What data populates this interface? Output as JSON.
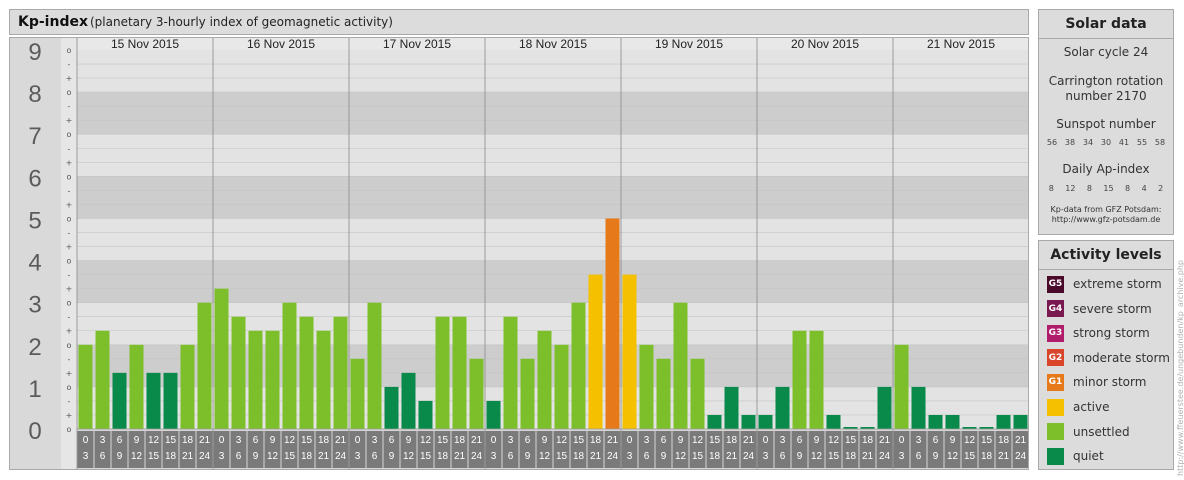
{
  "header": {
    "title": "Kp-index",
    "subtitle": "(planetary 3-hourly index of geomagnetic activity)"
  },
  "chart_data": {
    "type": "bar",
    "title": "Kp-index",
    "ylim": [
      0,
      9
    ],
    "y_ticks": [
      "0",
      "1",
      "2",
      "3",
      "4",
      "5",
      "6",
      "7",
      "8",
      "9"
    ],
    "sub_ticks": [
      "+",
      "o",
      "-"
    ],
    "days": [
      "15 Nov 2015",
      "16 Nov 2015",
      "17 Nov 2015",
      "18 Nov 2015",
      "19 Nov 2015",
      "20 Nov 2015",
      "21 Nov 2015"
    ],
    "interval_start": [
      "0",
      "3",
      "6",
      "9",
      "12",
      "15",
      "18",
      "21"
    ],
    "interval_end": [
      "3",
      "6",
      "9",
      "12",
      "15",
      "18",
      "21",
      "24"
    ],
    "values": [
      [
        2.0,
        2.333,
        1.333,
        2.0,
        1.333,
        1.333,
        2.0,
        3.0
      ],
      [
        3.333,
        2.667,
        2.333,
        2.333,
        3.0,
        2.667,
        2.333,
        2.667
      ],
      [
        1.667,
        3.0,
        1.0,
        1.333,
        0.667,
        2.667,
        2.667,
        1.667
      ],
      [
        0.667,
        2.667,
        1.667,
        2.333,
        2.0,
        3.0,
        3.667,
        5.0
      ],
      [
        3.667,
        2.0,
        1.667,
        3.0,
        1.667,
        0.333,
        1.0,
        0.333
      ],
      [
        0.333,
        1.0,
        2.333,
        2.333,
        0.333,
        0.0,
        0.0,
        1.0
      ],
      [
        2.0,
        1.0,
        0.333,
        0.333,
        0.0,
        0.0,
        0.333,
        0.333
      ]
    ],
    "categories": [
      "quiet",
      "unsettled",
      "active",
      "minor storm"
    ],
    "colors": {
      "quiet": "#0a8a4a",
      "unsettled": "#7cbf2a",
      "active": "#f5c000",
      "minor storm": "#e67a1a"
    }
  },
  "solar": {
    "title": "Solar data",
    "cycle": "Solar cycle 24",
    "carrington_1": "Carrington rotation",
    "carrington_2": "number 2170",
    "sunspot_title": "Sunspot number",
    "sunspot_values": [
      "56",
      "38",
      "34",
      "30",
      "41",
      "55",
      "58"
    ],
    "ap_title": "Daily Ap-index",
    "ap_values": [
      "8",
      "12",
      "8",
      "15",
      "8",
      "4",
      "2"
    ],
    "source_1": "Kp-data from GFZ Potsdam:",
    "source_2": "http://www.gfz-potsdam.de"
  },
  "activity": {
    "title": "Activity levels",
    "levels": [
      {
        "badge": "G5",
        "label": "extreme storm",
        "color": "#4a0a2a"
      },
      {
        "badge": "G4",
        "label": "severe storm",
        "color": "#7a1850"
      },
      {
        "badge": "G3",
        "label": "strong storm",
        "color": "#b01c6a"
      },
      {
        "badge": "G2",
        "label": "moderate storm",
        "color": "#d8452a"
      },
      {
        "badge": "G1",
        "label": "minor storm",
        "color": "#e67a1a"
      },
      {
        "badge": "",
        "label": "active",
        "color": "#f5c000"
      },
      {
        "badge": "",
        "label": "unsettled",
        "color": "#7cbf2a"
      },
      {
        "badge": "",
        "label": "quiet",
        "color": "#0a8a4a"
      }
    ]
  },
  "watermark": "http://www.ffeuerstee.de/ungebunden/kp_archive.php"
}
